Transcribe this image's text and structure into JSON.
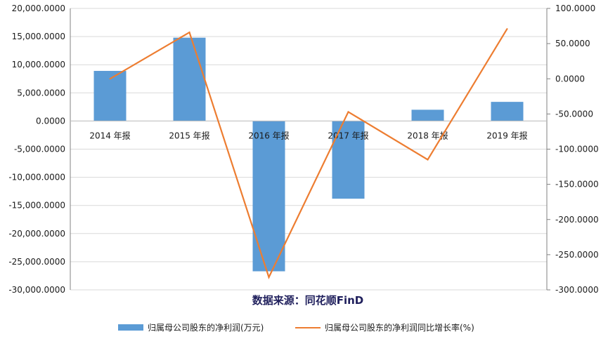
{
  "chart_data": {
    "type": "bar+line",
    "categories": [
      "2014 年报",
      "2015 年报",
      "2016 年报",
      "2017 年报",
      "2018 年报",
      "2019 年报"
    ],
    "series": [
      {
        "name": "归属母公司股东的净利润(万元)",
        "type": "bar",
        "axis": "left",
        "color": "#5B9BD5",
        "values": [
          8900,
          14800,
          -26700,
          -13800,
          2000,
          3400
        ]
      },
      {
        "name": "归属母公司股东的净利润同比增长率(%)",
        "type": "line",
        "axis": "right",
        "color": "#ED7D31",
        "values": [
          0,
          66,
          -282,
          -47,
          -115,
          71
        ]
      }
    ],
    "y_left": {
      "min": -30000,
      "max": 20000,
      "step": 5000,
      "tick_labels": [
        "20,000.0000",
        "15,000.0000",
        "10,000.0000",
        "5,000.0000",
        "0.0000",
        "-5,000.0000",
        "-10,000.0000",
        "-15,000.0000",
        "-20,000.0000",
        "-25,000.0000",
        "-30,000.0000"
      ]
    },
    "y_right": {
      "min": -300,
      "max": 100,
      "step": 50,
      "tick_labels": [
        "100.0000",
        "50.0000",
        "0.0000",
        "-50.0000",
        "-100.0000",
        "-150.0000",
        "-200.0000",
        "-250.0000",
        "-300.0000"
      ]
    },
    "grid": true,
    "legend_position": "bottom",
    "annotation": "数据来源：同花顺FinD"
  }
}
